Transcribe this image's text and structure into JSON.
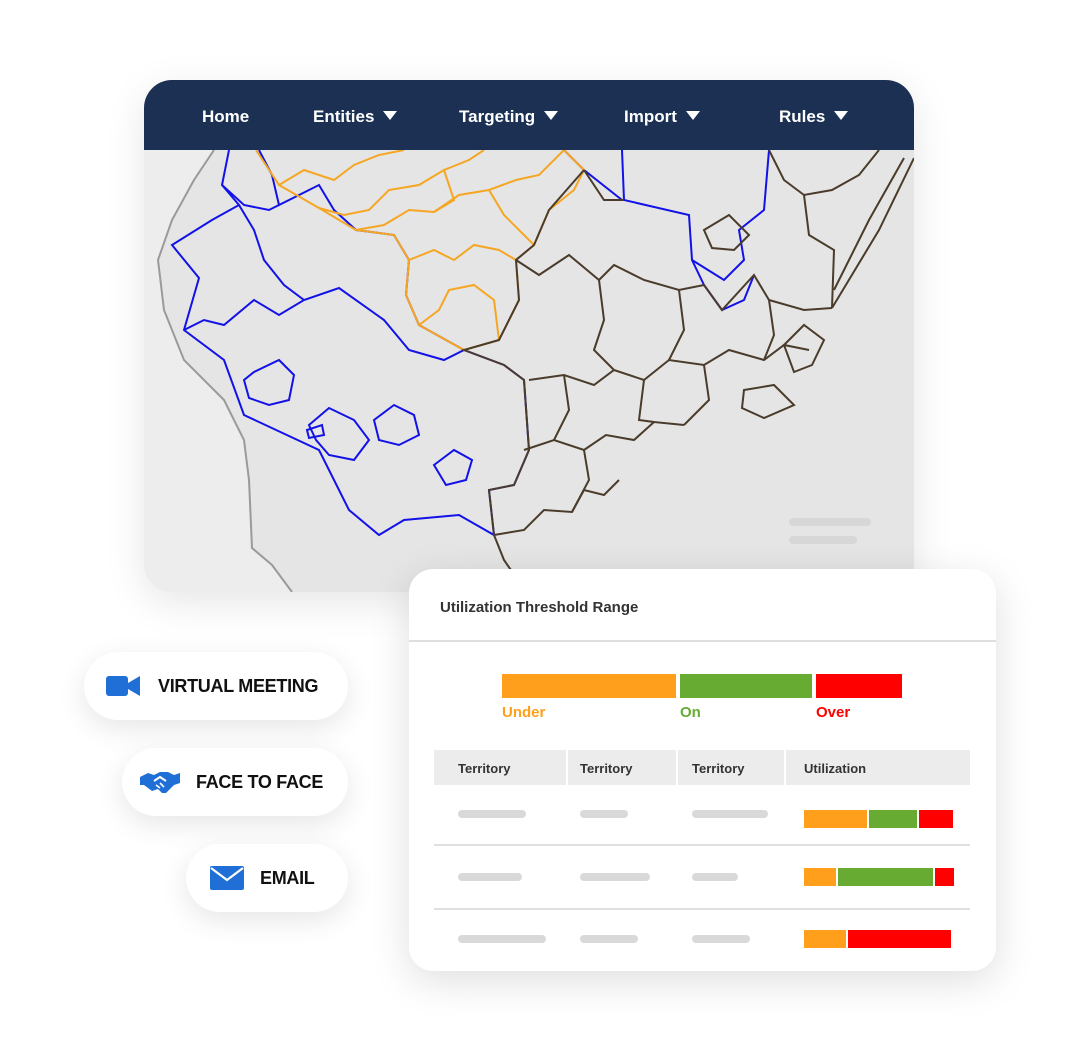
{
  "nav": {
    "items": [
      {
        "label": "Home",
        "has_dropdown": false
      },
      {
        "label": "Entities",
        "has_dropdown": true
      },
      {
        "label": "Targeting",
        "has_dropdown": true
      },
      {
        "label": "Import",
        "has_dropdown": true
      },
      {
        "label": "Rules",
        "has_dropdown": true
      }
    ]
  },
  "map": {
    "region_colors": {
      "orange": "#f5a623",
      "blue": "#1212e8",
      "brown": "#4a3b2a"
    }
  },
  "channels": [
    {
      "label": "VIRTUAL MEETING",
      "icon": "video-camera-icon"
    },
    {
      "label": "FACE TO FACE",
      "icon": "handshake-icon"
    },
    {
      "label": "EMAIL",
      "icon": "envelope-icon"
    }
  ],
  "utilization": {
    "title": "Utilization Threshold Range",
    "legend": [
      {
        "label": "Under",
        "color": "#ff9f1c"
      },
      {
        "label": "On",
        "color": "#67ab32"
      },
      {
        "label": "Over",
        "color": "#ff0000"
      }
    ],
    "table": {
      "headers": [
        "Territory",
        "Territory",
        "Territory",
        "Utilization"
      ],
      "rows": [
        {
          "under": 0.3,
          "on": 0.23,
          "over": 0.16
        },
        {
          "under": 0.15,
          "on": 0.45,
          "over": 0.09
        },
        {
          "under": 0.2,
          "on": 0.0,
          "over": 0.49
        }
      ]
    }
  },
  "colors": {
    "nav_background": "#1b3052",
    "accent_blue": "#1f6fd6"
  }
}
